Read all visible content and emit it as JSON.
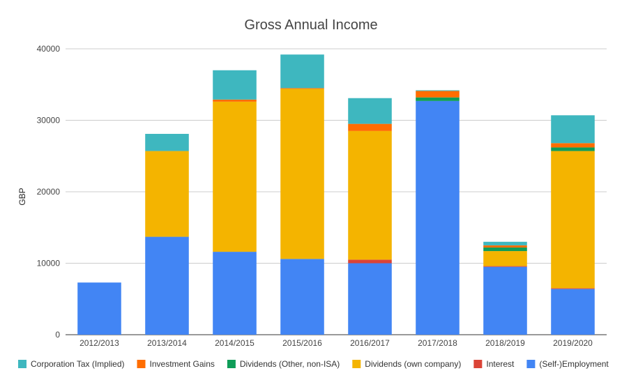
{
  "chart_data": {
    "type": "bar",
    "stacked": true,
    "title": "Gross Annual Income",
    "xlabel": "",
    "ylabel": "GBP",
    "ylim": [
      0,
      40000
    ],
    "yticks": [
      0,
      10000,
      20000,
      30000,
      40000
    ],
    "grid": true,
    "legend_position": "bottom",
    "categories": [
      "2012/2013",
      "2013/2014",
      "2014/2015",
      "2015/2016",
      "2016/2017",
      "2017/2018",
      "2018/2019",
      "2019/2020"
    ],
    "series": [
      {
        "name": "(Self-)Employment",
        "color": "#4285f4",
        "values": [
          7300,
          13700,
          11600,
          10600,
          10000,
          32700,
          9500,
          6400
        ]
      },
      {
        "name": "Interest",
        "color": "#db4437",
        "values": [
          0,
          0,
          0,
          0,
          500,
          0,
          100,
          100
        ]
      },
      {
        "name": "Dividends (own company)",
        "color": "#f4b400",
        "values": [
          0,
          12000,
          21000,
          23800,
          18000,
          0,
          2100,
          19200
        ]
      },
      {
        "name": "Dividends (Other, non-ISA)",
        "color": "#0f9d58",
        "values": [
          0,
          0,
          0,
          0,
          0,
          500,
          500,
          500
        ]
      },
      {
        "name": "Investment Gains",
        "color": "#ff6d00",
        "values": [
          0,
          0,
          300,
          100,
          1000,
          900,
          300,
          600
        ]
      },
      {
        "name": "Corporation Tax (Implied)",
        "color": "#3eb7bf",
        "values": [
          0,
          2400,
          4100,
          4700,
          3600,
          100,
          500,
          3900
        ]
      }
    ],
    "legend_order": [
      "Corporation Tax (Implied)",
      "Investment Gains",
      "Dividends (Other, non-ISA)",
      "Dividends (own company)",
      "Interest",
      "(Self-)Employment"
    ]
  }
}
